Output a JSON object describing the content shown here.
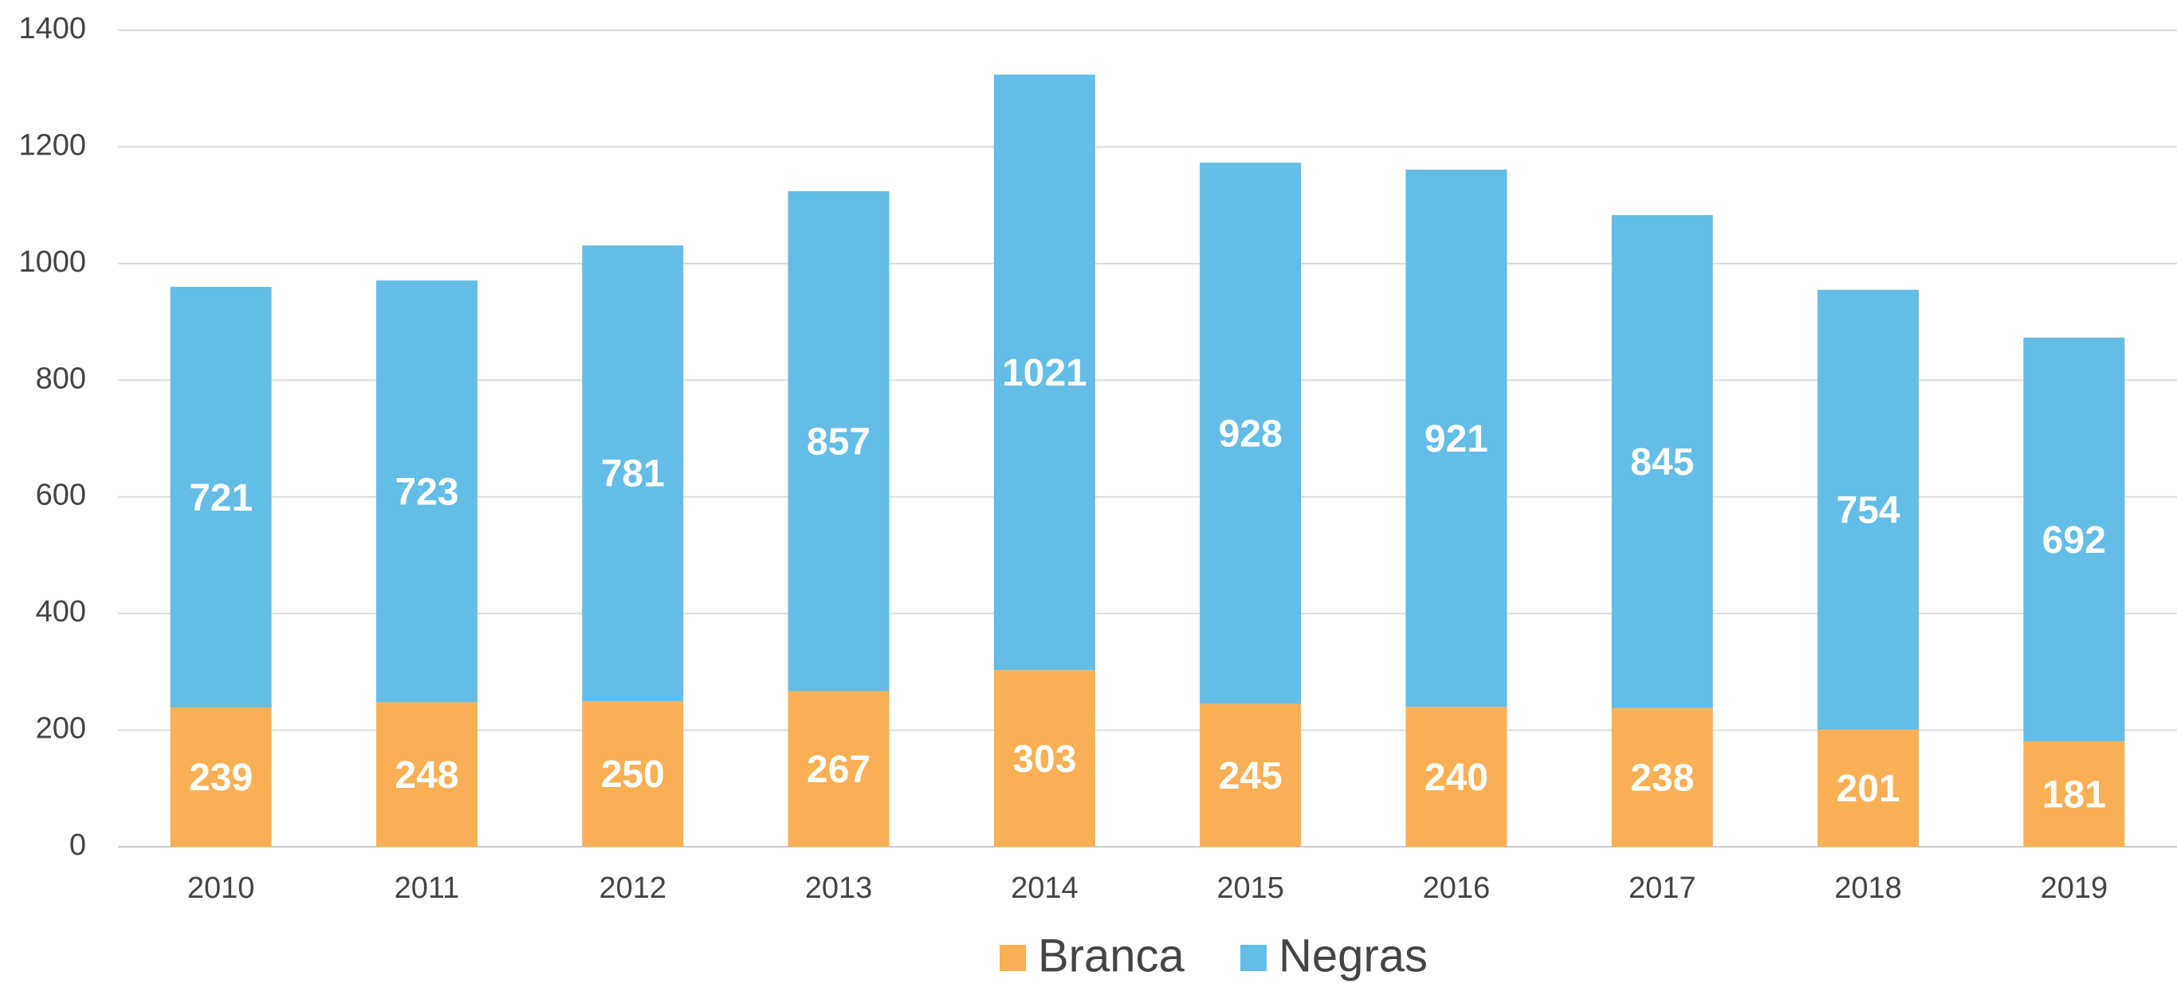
{
  "chart_data": {
    "type": "stacked_bar",
    "categories": [
      "2010",
      "2011",
      "2012",
      "2013",
      "2014",
      "2015",
      "2016",
      "2017",
      "2018",
      "2019"
    ],
    "series": [
      {
        "name": "Branca",
        "color": "#f9b054",
        "values": [
          239,
          248,
          250,
          267,
          303,
          245,
          240,
          238,
          201,
          181
        ]
      },
      {
        "name": "Negras",
        "color": "#63bde6",
        "values": [
          721,
          723,
          781,
          857,
          1021,
          928,
          921,
          845,
          754,
          692
        ]
      }
    ],
    "ylim": [
      0,
      1400
    ],
    "yticks": [
      0,
      200,
      400,
      600,
      800,
      1000,
      1200,
      1400
    ],
    "grid": true,
    "legend": "bottom"
  }
}
